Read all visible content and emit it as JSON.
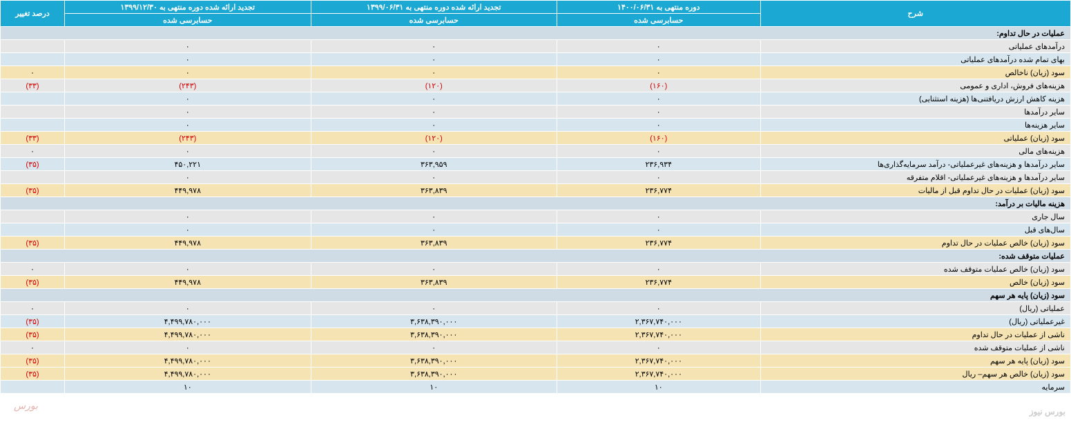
{
  "columns": {
    "desc": "شرح",
    "c1_top": "دوره منتهی به ۱۴۰۰/۰۶/۳۱",
    "c1_sub": "حسابرسی شده",
    "c2_top": "تجدید ارائه شده دوره منتهی به ۱۳۹۹/۰۶/۳۱",
    "c2_sub": "حسابرسی شده",
    "c3_top": "تجدید ارائه شده دوره منتهی به ۱۳۹۹/۱۲/۳۰",
    "c3_sub": "حسابرسی شده",
    "pct": "درصد تغییر"
  },
  "rows": [
    {
      "type": "section",
      "desc": "عملیات در حال تداوم:"
    },
    {
      "type": "gray",
      "desc": "درآمدهای عملیاتی",
      "c1": "۰",
      "c2": "۰",
      "c3": "۰",
      "pct": ""
    },
    {
      "type": "blue",
      "desc": "بهای تمام شده درآمدهای عملیاتی",
      "c1": "۰",
      "c2": "۰",
      "c3": "۰",
      "pct": ""
    },
    {
      "type": "yellow",
      "desc": "سود (زیان) ناخالص",
      "c1": "۰",
      "c2": "۰",
      "c3": "۰",
      "pct": "۰"
    },
    {
      "type": "gray",
      "desc": "هزینه‌های فروش، اداری و عمومی",
      "c1": "(۱۶۰)",
      "c1_neg": true,
      "c2": "(۱۲۰)",
      "c2_neg": true,
      "c3": "(۲۴۳)",
      "c3_neg": true,
      "pct": "(۳۳)",
      "pct_neg": true
    },
    {
      "type": "blue",
      "desc": "هزینه کاهش ارزش دریافتنی‌ها (هزینه استثنایی)",
      "c1": "۰",
      "c2": "۰",
      "c3": "۰",
      "pct": ""
    },
    {
      "type": "gray",
      "desc": "سایر درآمدها",
      "c1": "۰",
      "c2": "۰",
      "c3": "۰",
      "pct": ""
    },
    {
      "type": "blue",
      "desc": "سایر هزینه‌ها",
      "c1": "۰",
      "c2": "۰",
      "c3": "۰",
      "pct": ""
    },
    {
      "type": "yellow",
      "desc": "سود (زیان) عملیاتی",
      "c1": "(۱۶۰)",
      "c1_neg": true,
      "c2": "(۱۲۰)",
      "c2_neg": true,
      "c3": "(۲۴۳)",
      "c3_neg": true,
      "pct": "(۳۳)",
      "pct_neg": true
    },
    {
      "type": "gray",
      "desc": "هزینه‌های مالی",
      "c1": "۰",
      "c2": "۰",
      "c3": "۰",
      "pct": "۰"
    },
    {
      "type": "blue",
      "desc": "سایر درآمدها و هزینه‌های غیرعملیاتی- درآمد سرمایه‌گذاری‌ها",
      "c1": "۲۳۶,۹۳۴",
      "c2": "۳۶۳,۹۵۹",
      "c3": "۴۵۰,۲۲۱",
      "pct": "(۳۵)",
      "pct_neg": true
    },
    {
      "type": "gray",
      "desc": "سایر درآمدها و هزینه‌های غیرعملیاتی- اقلام متفرقه",
      "c1": "۰",
      "c2": "۰",
      "c3": "۰",
      "pct": ""
    },
    {
      "type": "yellow",
      "desc": "سود (زیان) عملیات در حال تداوم قبل از مالیات",
      "c1": "۲۳۶,۷۷۴",
      "c2": "۳۶۳,۸۳۹",
      "c3": "۴۴۹,۹۷۸",
      "pct": "(۳۵)",
      "pct_neg": true
    },
    {
      "type": "section",
      "desc": "هزینه مالیات بر درآمد:"
    },
    {
      "type": "gray",
      "desc": "سال جاری",
      "c1": "۰",
      "c2": "۰",
      "c3": "۰",
      "pct": ""
    },
    {
      "type": "blue",
      "desc": "سال‌های قبل",
      "c1": "۰",
      "c2": "۰",
      "c3": "۰",
      "pct": ""
    },
    {
      "type": "yellow",
      "desc": "سود (زیان) خالص عملیات در حال تداوم",
      "c1": "۲۳۶,۷۷۴",
      "c2": "۳۶۳,۸۳۹",
      "c3": "۴۴۹,۹۷۸",
      "pct": "(۳۵)",
      "pct_neg": true
    },
    {
      "type": "section",
      "desc": "عملیات متوقف شده:"
    },
    {
      "type": "gray",
      "desc": "سود (زیان) خالص عملیات متوقف شده",
      "c1": "۰",
      "c2": "۰",
      "c3": "۰",
      "pct": "۰"
    },
    {
      "type": "yellow",
      "desc": "سود (زیان) خالص",
      "c1": "۲۳۶,۷۷۴",
      "c2": "۳۶۳,۸۳۹",
      "c3": "۴۴۹,۹۷۸",
      "pct": "(۳۵)",
      "pct_neg": true
    },
    {
      "type": "section",
      "desc": "سود (زیان) پایه هر سهم"
    },
    {
      "type": "gray",
      "desc": "عملیاتی (ریال)",
      "c1": "۰",
      "c2": "۰",
      "c3": "۰",
      "pct": "۰"
    },
    {
      "type": "blue",
      "desc": "غیرعملیاتی (ریال)",
      "c1": "۲,۳۶۷,۷۴۰,۰۰۰",
      "c2": "۳,۶۳۸,۳۹۰,۰۰۰",
      "c3": "۴,۴۹۹,۷۸۰,۰۰۰",
      "pct": "(۳۵)",
      "pct_neg": true
    },
    {
      "type": "yellow",
      "desc": "ناشی از عملیات در حال تداوم",
      "c1": "۲,۳۶۷,۷۴۰,۰۰۰",
      "c2": "۳,۶۳۸,۳۹۰,۰۰۰",
      "c3": "۴,۴۹۹,۷۸۰,۰۰۰",
      "pct": "(۳۵)",
      "pct_neg": true
    },
    {
      "type": "gray",
      "desc": "ناشی از عملیات متوقف شده",
      "c1": "۰",
      "c2": "۰",
      "c3": "۰",
      "pct": "۰"
    },
    {
      "type": "yellow",
      "desc": "سود (زیان) پایه هر سهم",
      "c1": "۲,۳۶۷,۷۴۰,۰۰۰",
      "c2": "۳,۶۳۸,۳۹۰,۰۰۰",
      "c3": "۴,۴۹۹,۷۸۰,۰۰۰",
      "pct": "(۳۵)",
      "pct_neg": true
    },
    {
      "type": "yellow",
      "desc": "سود (زیان) خالص هر سهم– ریال",
      "c1": "۲,۳۶۷,۷۴۰,۰۰۰",
      "c2": "۳,۶۳۸,۳۹۰,۰۰۰",
      "c3": "۴,۴۹۹,۷۸۰,۰۰۰",
      "pct": "(۳۵)",
      "pct_neg": true
    },
    {
      "type": "blue",
      "desc": "سرمایه",
      "c1": "۱۰",
      "c2": "۱۰",
      "c3": "۱۰",
      "pct": ""
    }
  ],
  "watermark": "بورس نیوز",
  "col_widths": {
    "desc": "29%",
    "c1": "19%",
    "c2": "23%",
    "c3": "23%",
    "pct": "6%"
  }
}
